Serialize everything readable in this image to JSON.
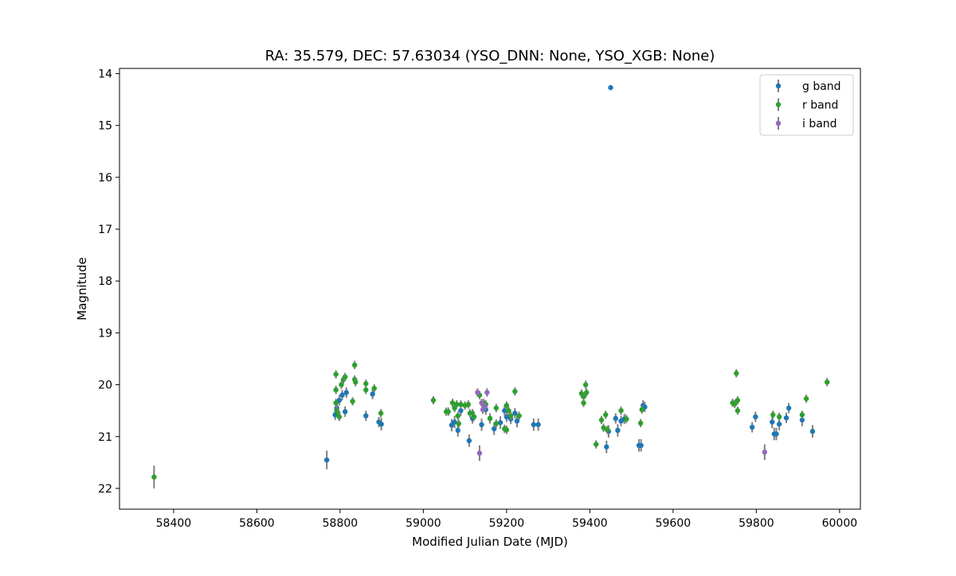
{
  "chart_data": {
    "type": "scatter",
    "title": "RA: 35.579, DEC: 57.63034 (YSO_DNN: None, YSO_XGB: None)",
    "xlabel": "Modified Julian Date (MJD)",
    "ylabel": "Magnitude",
    "xlim": [
      58270,
      60050
    ],
    "ylim": [
      22.4,
      13.9
    ],
    "y_inverted": true,
    "xticks": [
      58400,
      58600,
      58800,
      59000,
      59200,
      59400,
      59600,
      59800,
      60000
    ],
    "yticks": [
      14,
      15,
      16,
      17,
      18,
      19,
      20,
      21,
      22
    ],
    "grid": false,
    "legend_position": "top-right",
    "series": [
      {
        "name": "g band",
        "color": "#1f77b4",
        "points": [
          [
            58768,
            21.45,
            0.18
          ],
          [
            58788,
            20.58,
            0.1
          ],
          [
            58792,
            20.45,
            0.1
          ],
          [
            58798,
            20.3,
            0.1
          ],
          [
            58805,
            20.2,
            0.1
          ],
          [
            58812,
            20.52,
            0.1
          ],
          [
            58815,
            20.15,
            0.1
          ],
          [
            58862,
            20.6,
            0.1
          ],
          [
            58878,
            20.18,
            0.1
          ],
          [
            58893,
            20.72,
            0.1
          ],
          [
            58899,
            20.76,
            0.12
          ],
          [
            59068,
            20.78,
            0.12
          ],
          [
            59075,
            20.72,
            0.12
          ],
          [
            59083,
            20.88,
            0.12
          ],
          [
            59090,
            20.5,
            0.1
          ],
          [
            59110,
            21.08,
            0.12
          ],
          [
            59118,
            20.65,
            0.1
          ],
          [
            59140,
            20.77,
            0.12
          ],
          [
            59150,
            20.48,
            0.1
          ],
          [
            59160,
            20.65,
            0.1
          ],
          [
            59170,
            20.85,
            0.12
          ],
          [
            59185,
            20.73,
            0.12
          ],
          [
            59195,
            20.5,
            0.1
          ],
          [
            59200,
            20.62,
            0.1
          ],
          [
            59210,
            20.66,
            0.1
          ],
          [
            59220,
            20.55,
            0.1
          ],
          [
            59225,
            20.7,
            0.12
          ],
          [
            59265,
            20.77,
            0.12
          ],
          [
            59276,
            20.77,
            0.12
          ],
          [
            59450,
            14.27,
            0.04
          ],
          [
            59440,
            21.2,
            0.12
          ],
          [
            59445,
            20.9,
            0.12
          ],
          [
            59462,
            20.65,
            0.1
          ],
          [
            59467,
            20.88,
            0.12
          ],
          [
            59475,
            20.7,
            0.1
          ],
          [
            59483,
            20.66,
            0.1
          ],
          [
            59518,
            21.17,
            0.12
          ],
          [
            59523,
            21.17,
            0.12
          ],
          [
            59528,
            20.4,
            0.1
          ],
          [
            59532,
            20.43,
            0.1
          ],
          [
            59790,
            20.82,
            0.1
          ],
          [
            59798,
            20.62,
            0.1
          ],
          [
            59838,
            20.72,
            0.12
          ],
          [
            59843,
            20.95,
            0.12
          ],
          [
            59848,
            20.95,
            0.12
          ],
          [
            59855,
            20.76,
            0.12
          ],
          [
            59872,
            20.64,
            0.1
          ],
          [
            59878,
            20.45,
            0.1
          ],
          [
            59910,
            20.68,
            0.12
          ],
          [
            59935,
            20.9,
            0.12
          ]
        ]
      },
      {
        "name": "r band",
        "color": "#2ca02c",
        "points": [
          [
            58353,
            21.78,
            0.22
          ],
          [
            58790,
            19.8,
            0.08
          ],
          [
            58790,
            20.1,
            0.08
          ],
          [
            58790,
            20.35,
            0.08
          ],
          [
            58792,
            20.5,
            0.08
          ],
          [
            58795,
            20.55,
            0.08
          ],
          [
            58798,
            20.62,
            0.08
          ],
          [
            58803,
            20.0,
            0.08
          ],
          [
            58808,
            19.9,
            0.08
          ],
          [
            58812,
            19.85,
            0.08
          ],
          [
            58830,
            20.32,
            0.08
          ],
          [
            58835,
            19.62,
            0.08
          ],
          [
            58835,
            19.9,
            0.08
          ],
          [
            58837,
            19.95,
            0.08
          ],
          [
            58862,
            19.98,
            0.08
          ],
          [
            58862,
            20.1,
            0.08
          ],
          [
            58882,
            20.07,
            0.08
          ],
          [
            58898,
            20.55,
            0.08
          ],
          [
            59024,
            20.3,
            0.08
          ],
          [
            59055,
            20.52,
            0.08
          ],
          [
            59060,
            20.52,
            0.08
          ],
          [
            59070,
            20.35,
            0.08
          ],
          [
            59075,
            20.45,
            0.08
          ],
          [
            59080,
            20.38,
            0.08
          ],
          [
            59083,
            20.6,
            0.08
          ],
          [
            59085,
            20.75,
            0.08
          ],
          [
            59090,
            20.38,
            0.08
          ],
          [
            59100,
            20.4,
            0.08
          ],
          [
            59108,
            20.38,
            0.08
          ],
          [
            59112,
            20.55,
            0.08
          ],
          [
            59118,
            20.55,
            0.08
          ],
          [
            59122,
            20.62,
            0.08
          ],
          [
            59135,
            20.2,
            0.08
          ],
          [
            59145,
            20.35,
            0.08
          ],
          [
            59150,
            20.38,
            0.08
          ],
          [
            59160,
            20.65,
            0.08
          ],
          [
            59175,
            20.45,
            0.08
          ],
          [
            59175,
            20.75,
            0.08
          ],
          [
            59195,
            20.85,
            0.08
          ],
          [
            59200,
            20.87,
            0.08
          ],
          [
            59200,
            20.4,
            0.08
          ],
          [
            59205,
            20.5,
            0.08
          ],
          [
            59210,
            20.6,
            0.08
          ],
          [
            59220,
            20.13,
            0.08
          ],
          [
            59230,
            20.6,
            0.08
          ],
          [
            59380,
            20.17,
            0.08
          ],
          [
            59385,
            20.23,
            0.08
          ],
          [
            59385,
            20.35,
            0.08
          ],
          [
            59390,
            20.0,
            0.08
          ],
          [
            59392,
            20.15,
            0.08
          ],
          [
            59415,
            21.15,
            0.08
          ],
          [
            59428,
            20.68,
            0.08
          ],
          [
            59433,
            20.83,
            0.08
          ],
          [
            59438,
            20.58,
            0.08
          ],
          [
            59442,
            20.87,
            0.08
          ],
          [
            59475,
            20.5,
            0.08
          ],
          [
            59488,
            20.66,
            0.08
          ],
          [
            59522,
            20.74,
            0.08
          ],
          [
            59525,
            20.48,
            0.08
          ],
          [
            59743,
            20.35,
            0.08
          ],
          [
            59748,
            20.37,
            0.08
          ],
          [
            59752,
            19.78,
            0.08
          ],
          [
            59755,
            20.3,
            0.08
          ],
          [
            59755,
            20.5,
            0.08
          ],
          [
            59840,
            20.58,
            0.08
          ],
          [
            59855,
            20.62,
            0.08
          ],
          [
            59910,
            20.58,
            0.08
          ],
          [
            59920,
            20.27,
            0.08
          ],
          [
            59970,
            19.95,
            0.08
          ]
        ]
      },
      {
        "name": "i band",
        "color": "#9467bd",
        "points": [
          [
            59130,
            20.15,
            0.08
          ],
          [
            59135,
            21.32,
            0.15
          ],
          [
            59140,
            20.35,
            0.08
          ],
          [
            59143,
            20.48,
            0.08
          ],
          [
            59148,
            20.42,
            0.08
          ],
          [
            59153,
            20.15,
            0.08
          ],
          [
            59820,
            21.3,
            0.15
          ]
        ]
      }
    ]
  }
}
